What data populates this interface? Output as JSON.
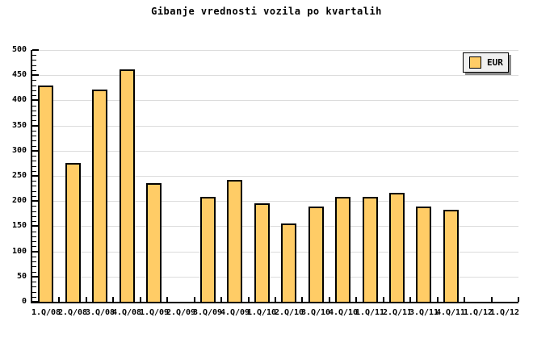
{
  "chart_data": {
    "type": "bar",
    "title": "Gibanje vrednosti vozila po kvartalih",
    "categories": [
      "1.Q/08",
      "2.Q/08",
      "3.Q/08",
      "4.Q/08",
      "1.Q/09",
      "2.Q/09",
      "3.Q/09",
      "4.Q/09",
      "1.Q/10",
      "2.Q/10",
      "3.Q/10",
      "4.Q/10",
      "1.Q/11",
      "2.Q/11",
      "3.Q/11",
      "4.Q/11",
      "1.Q/12",
      "1.Q/12"
    ],
    "series": [
      {
        "name": "EUR",
        "values": [
          430,
          276,
          421,
          461,
          236,
          null,
          209,
          242,
          196,
          156,
          189,
          208,
          209,
          217,
          189,
          182,
          null,
          null
        ]
      }
    ],
    "xlabel": "",
    "ylabel": "",
    "ylim": [
      0,
      500
    ],
    "y_major_step": 50,
    "y_minor_step": 10,
    "grid": "horizontal-major",
    "legend_position": "top-right",
    "colors": {
      "bar_fill": "#FFCC66",
      "bar_border": "#000000",
      "grid": "#DCDCDC",
      "axis": "#000000",
      "text": "#000000",
      "legend_bg": "#F0F0F0",
      "legend_shadow": "#8C8C8C",
      "background": "#FFFFFF"
    }
  }
}
